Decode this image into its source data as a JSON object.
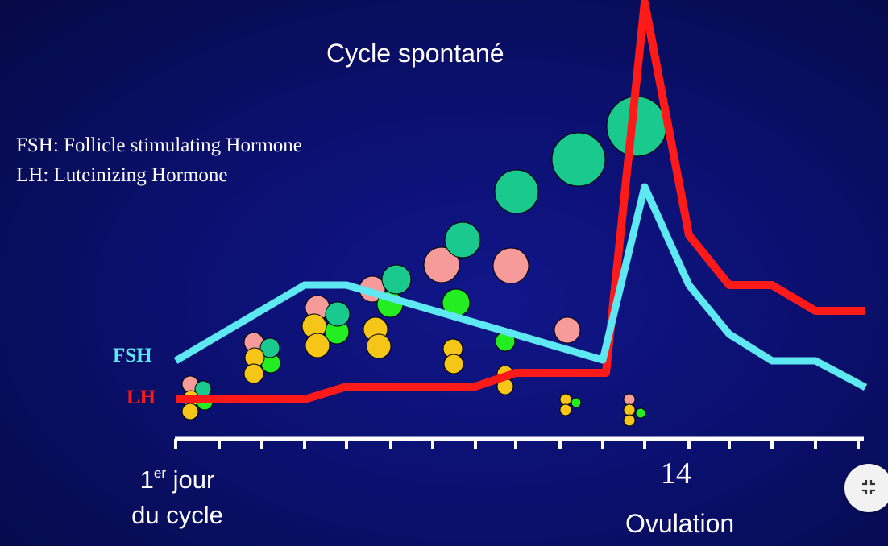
{
  "title": "Cycle spontané",
  "legend": {
    "fsh": "FSH: Follicle stimulating Hormone",
    "lh": "LH: Luteinizing Hormone"
  },
  "series_labels": {
    "fsh": "FSH",
    "lh": "LH"
  },
  "axis": {
    "day1_sup": "er",
    "day1_line1_rest": "jour",
    "day1_line1_num": "1",
    "day1_line2": "du cycle",
    "day14": "14",
    "ovulation": "Ovulation"
  },
  "colors": {
    "fsh": "#5ee8f2",
    "lh": "#ff1a1a",
    "follicle_teal": "#19c98e",
    "follicle_pink": "#f79a9a",
    "follicle_green": "#22ee22",
    "follicle_yellow": "#f5c518"
  },
  "exit_fullscreen_icon": "collapse-icon"
}
